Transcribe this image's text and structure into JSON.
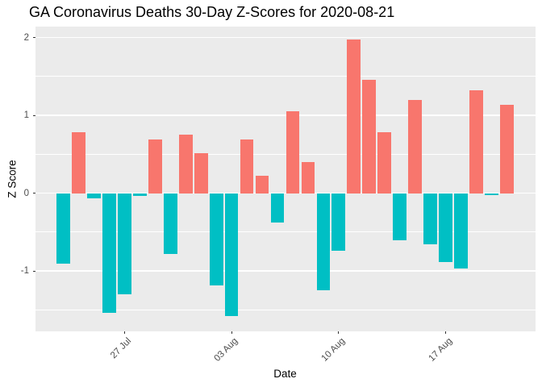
{
  "chart_data": {
    "type": "bar",
    "title": "GA Coronavirus Deaths 30-Day Z-Scores for 2020-08-21",
    "xlabel": "Date",
    "ylabel": "Z Score",
    "grid": "on",
    "legend": "none",
    "ylim": [
      -1.77,
      2.14
    ],
    "dates": [
      "2020-07-23",
      "2020-07-24",
      "2020-07-25",
      "2020-07-26",
      "2020-07-27",
      "2020-07-28",
      "2020-07-29",
      "2020-07-30",
      "2020-07-31",
      "2020-08-01",
      "2020-08-02",
      "2020-08-03",
      "2020-08-04",
      "2020-08-05",
      "2020-08-06",
      "2020-08-07",
      "2020-08-08",
      "2020-08-09",
      "2020-08-10",
      "2020-08-11",
      "2020-08-12",
      "2020-08-13",
      "2020-08-14",
      "2020-08-15",
      "2020-08-16",
      "2020-08-17",
      "2020-08-18",
      "2020-08-19",
      "2020-08-20",
      "2020-08-21"
    ],
    "values": [
      -0.9,
      0.78,
      -0.07,
      -1.54,
      -1.3,
      -0.04,
      0.69,
      -0.78,
      0.75,
      0.51,
      -1.18,
      -1.58,
      0.69,
      0.22,
      -0.38,
      1.05,
      0.4,
      -1.25,
      -0.74,
      1.97,
      1.46,
      0.78,
      -0.6,
      1.2,
      -0.66,
      -0.88,
      -0.97,
      1.32,
      -0.02,
      1.14
    ],
    "y_ticks": [
      {
        "label": "2",
        "value": 2
      },
      {
        "label": "1",
        "value": 1
      },
      {
        "label": "0",
        "value": 0
      },
      {
        "label": "-1",
        "value": -1
      }
    ],
    "y_minor_ticks": [
      1.5,
      0.5,
      -0.5,
      -1.5
    ],
    "x_ticks": [
      {
        "label": "27 Jul",
        "date": "2020-07-27"
      },
      {
        "label": "03 Aug",
        "date": "2020-08-03"
      },
      {
        "label": "10 Aug",
        "date": "2020-08-10"
      },
      {
        "label": "17 Aug",
        "date": "2020-08-17"
      }
    ],
    "colors": {
      "positive": "#F8766D",
      "negative": "#00BFC4",
      "panel_bg": "#EBEBEB",
      "grid": "#FFFFFF",
      "tick_text": "#4D4D4D",
      "tick_mark": "#333333",
      "title_text": "#000000"
    }
  }
}
